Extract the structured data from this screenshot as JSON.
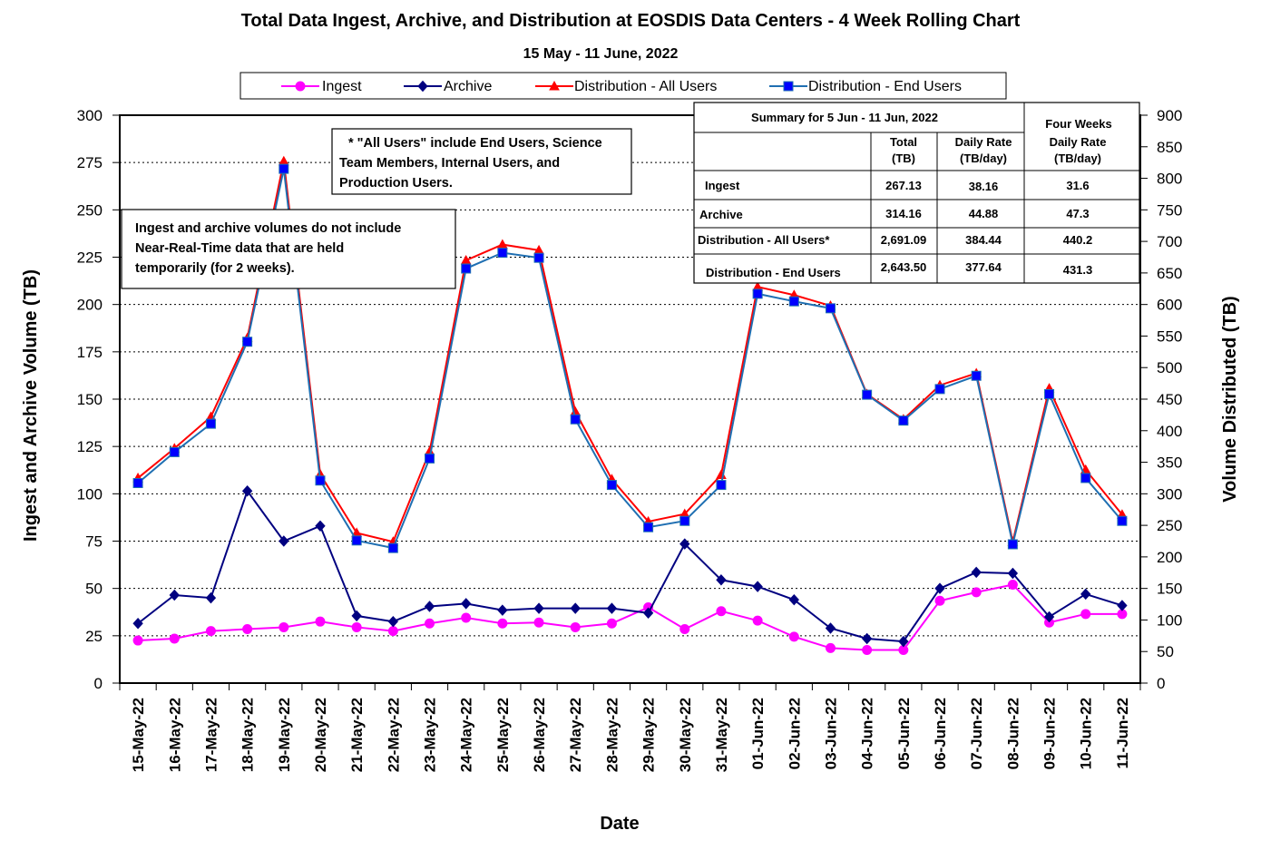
{
  "chart_data": {
    "type": "line",
    "title": "Total Data Ingest, Archive, and  Distribution at EOSDIS Data Centers - 4 Week Rolling Chart",
    "subtitle": "15  May   - 11  June,  2022",
    "xlabel": "Date",
    "ylabel_left": "Ingest and Archive Volume (TB)",
    "ylabel_right": "Volume Distributed (TB)",
    "ylim_left": [
      0,
      300
    ],
    "ylim_right": [
      0,
      900
    ],
    "yticks_left": [
      "0",
      "25",
      "50",
      "75",
      "100",
      "125",
      "150",
      "175",
      "200",
      "225",
      "250",
      "275",
      "300"
    ],
    "yticks_right": [
      "0",
      "50",
      "100",
      "150",
      "200",
      "250",
      "300",
      "350",
      "400",
      "450",
      "500",
      "550",
      "600",
      "650",
      "700",
      "750",
      "800",
      "850",
      "900"
    ],
    "grid": true,
    "legend_position": "top",
    "categories": [
      "15-May-22",
      "16-May-22",
      "17-May-22",
      "18-May-22",
      "19-May-22",
      "20-May-22",
      "21-May-22",
      "22-May-22",
      "23-May-22",
      "24-May-22",
      "25-May-22",
      "26-May-22",
      "27-May-22",
      "28-May-22",
      "29-May-22",
      "30-May-22",
      "31-May-22",
      "01-Jun-22",
      "02-Jun-22",
      "03-Jun-22",
      "04-Jun-22",
      "05-Jun-22",
      "06-Jun-22",
      "07-Jun-22",
      "08-Jun-22",
      "09-Jun-22",
      "10-Jun-22",
      "11-Jun-22"
    ],
    "series": [
      {
        "name": "Ingest",
        "axis": "left",
        "color": "#ff00ff",
        "marker": "circle",
        "values": [
          22.5,
          23.5,
          27.5,
          28.5,
          29.5,
          32.5,
          29.5,
          27.5,
          31.5,
          34.5,
          31.5,
          32,
          29.5,
          31.5,
          40,
          28.5,
          38,
          33,
          24.5,
          18.5,
          17.5,
          17.5,
          43.5,
          48,
          52,
          32,
          36.5,
          36.5
        ]
      },
      {
        "name": "Archive",
        "axis": "left",
        "color": "#000080",
        "marker": "diamond",
        "values": [
          31.5,
          46.5,
          45,
          101.5,
          75,
          83,
          35.5,
          32.5,
          40.5,
          42,
          38.5,
          39.5,
          39.5,
          39.5,
          37,
          73.5,
          54.5,
          51,
          44,
          29,
          23.5,
          22,
          50,
          58.5,
          58,
          35,
          47,
          41
        ]
      },
      {
        "name": "Distribution - All Users",
        "axis": "right",
        "color": "#ff0000",
        "marker": "triangle",
        "values": [
          325,
          372,
          422,
          547,
          827,
          331,
          238,
          224,
          367,
          670,
          695,
          686,
          430,
          323,
          256,
          268,
          330,
          628,
          615,
          598,
          458,
          418,
          472,
          491,
          224,
          467,
          338,
          267
        ]
      },
      {
        "name": "Distribution - End Users",
        "axis": "right",
        "color": "#0000ff",
        "line_color": "#1f6fb2",
        "marker": "square",
        "values": [
          317,
          366,
          411,
          541,
          815,
          321,
          226,
          214,
          356,
          657,
          682,
          674,
          418,
          314,
          247,
          257,
          314,
          617,
          605,
          594,
          457,
          416,
          466,
          487,
          220,
          458,
          325,
          257
        ]
      }
    ],
    "notes": [
      [
        "* \"All Users\" include End Users, Science",
        "Team Members,  Internal Users, and",
        "Production Users."
      ],
      [
        "Ingest and archive volumes do not include",
        "Near-Real-Time data that are held",
        "temporarily (for 2 weeks)."
      ]
    ],
    "summary_table": {
      "title": "Summary  for  5 Jun   - 11 Jun,  2022",
      "four_weeks_header": "Four Weeks",
      "col_headers": [
        [
          "Total",
          "(TB)"
        ],
        [
          "Daily Rate",
          "(TB/day)"
        ],
        [
          "Daily Rate",
          "(TB/day)"
        ]
      ],
      "rows": [
        {
          "label": "Ingest",
          "total": "267.13",
          "daily": "38.16",
          "four_weeks": "31.6"
        },
        {
          "label": "Archive",
          "total": "314.16",
          "daily": "44.88",
          "four_weeks": "47.3"
        },
        {
          "label": "Distribution - All Users*",
          "total": "2,691.09",
          "daily": "384.44",
          "four_weeks": "440.2"
        },
        {
          "label": "Distribution - End Users",
          "total": "2,643.50",
          "daily": "377.64",
          "four_weeks": "431.3"
        }
      ]
    }
  }
}
